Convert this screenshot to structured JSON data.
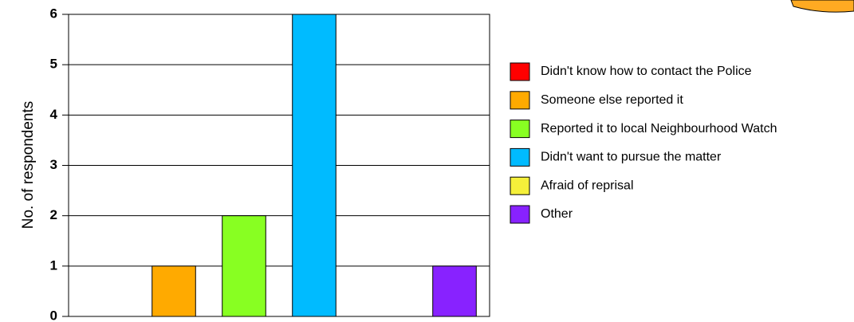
{
  "chart_data": {
    "type": "bar",
    "y_label": "No. of respondents",
    "categories": [
      "Didn't know how to contact the Police",
      "Someone else reported it",
      "Reported it to local Neighbourhood Watch",
      "Didn't want to pursue the matter",
      "Afraid of reprisal",
      "Other"
    ],
    "values": [
      0,
      1,
      2,
      6,
      0,
      1
    ],
    "colors": [
      "#ff0000",
      "#ffaa00",
      "#88ff22",
      "#00bbff",
      "#f5f03a",
      "#8822ff"
    ],
    "ylim": [
      0,
      6
    ],
    "yticks": [
      0,
      1,
      2,
      3,
      4,
      5,
      6
    ],
    "grid": true,
    "legend": "right"
  }
}
